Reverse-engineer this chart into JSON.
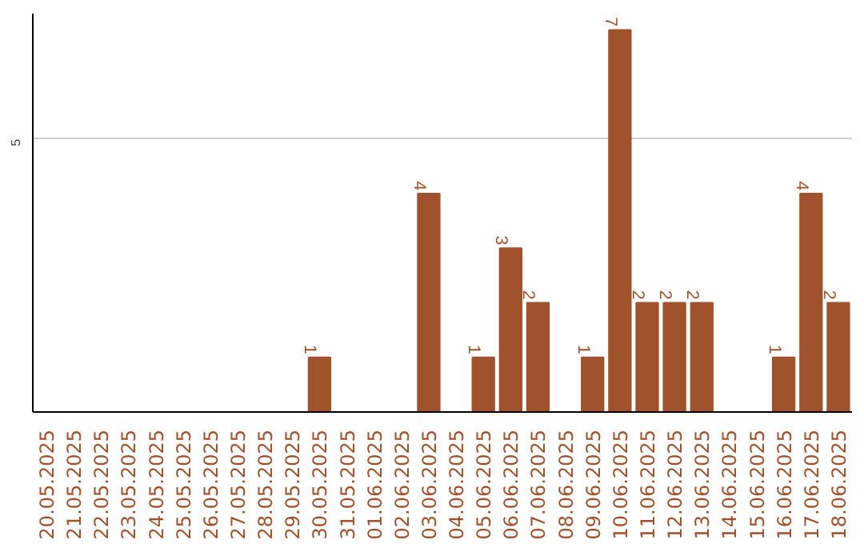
{
  "chart_data": {
    "type": "bar",
    "categories": [
      "20.05.2025",
      "21.05.2025",
      "22.05.2025",
      "23.05.2025",
      "24.05.2025",
      "25.05.2025",
      "26.05.2025",
      "27.05.2025",
      "28.05.2025",
      "29.05.2025",
      "30.05.2025",
      "31.05.2025",
      "01.06.2025",
      "02.06.2025",
      "03.06.2025",
      "04.06.2025",
      "05.06.2025",
      "06.06.2025",
      "07.06.2025",
      "08.06.2025",
      "09.06.2025",
      "10.06.2025",
      "11.06.2025",
      "12.06.2025",
      "13.06.2025",
      "14.06.2025",
      "15.06.2025",
      "16.06.2025",
      "17.06.2025",
      "18.06.2025"
    ],
    "values": [
      0,
      0,
      0,
      0,
      0,
      0,
      0,
      0,
      0,
      0,
      1,
      0,
      0,
      0,
      4,
      0,
      1,
      3,
      2,
      0,
      1,
      7,
      2,
      2,
      2,
      0,
      0,
      1,
      4,
      2
    ],
    "value_labels": [
      null,
      null,
      null,
      null,
      null,
      null,
      null,
      null,
      null,
      null,
      "1",
      null,
      null,
      null,
      "4",
      null,
      "1",
      "3",
      "2",
      null,
      "1",
      "7",
      "2",
      "2",
      "2",
      null,
      null,
      "1",
      "4",
      "2"
    ],
    "color": "#a0522d",
    "ylim": [
      0,
      7.3
    ],
    "yticks": [
      5
    ],
    "grid": "y"
  }
}
